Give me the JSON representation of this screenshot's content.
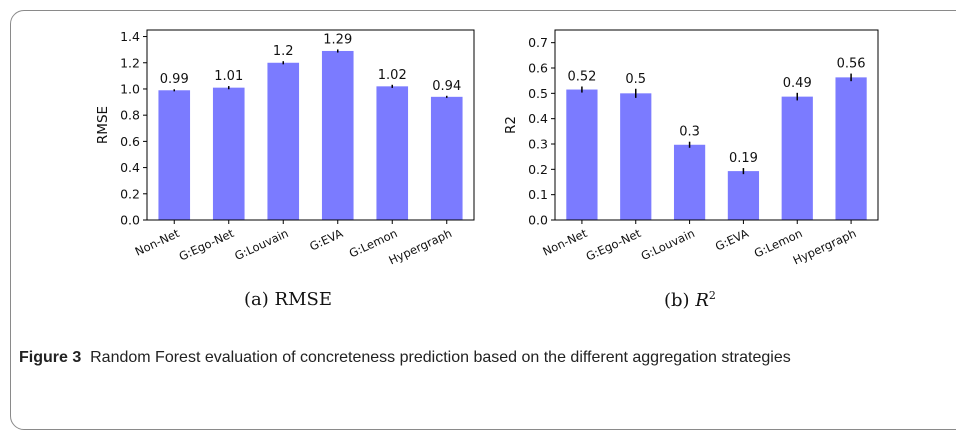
{
  "figure": {
    "label": "Figure 3",
    "caption": "Random Forest evaluation of concreteness prediction based on the different aggregation strategies"
  },
  "chart_data": [
    {
      "type": "bar",
      "subcaption_prefix": "(a)",
      "subcaption_text": "RMSE",
      "ylabel": "RMSE",
      "xlabel": "",
      "categories": [
        "Non-Net",
        "G:Ego-Net",
        "G:Louvain",
        "G:EVA",
        "G:Lemon",
        "Hypergraph"
      ],
      "values": [
        0.99,
        1.01,
        1.2,
        1.29,
        1.02,
        0.94
      ],
      "value_labels": [
        "0.99",
        "1.01",
        "1.2",
        "1.29",
        "1.02",
        "0.94"
      ],
      "errors": [
        0.008,
        0.012,
        0.012,
        0.012,
        0.012,
        0.008
      ],
      "ylim": [
        0,
        1.45
      ],
      "yticks": [
        0.0,
        0.2,
        0.4,
        0.6,
        0.8,
        1.0,
        1.2,
        1.4
      ],
      "ytick_labels": [
        "0.0",
        "0.2",
        "0.4",
        "0.6",
        "0.8",
        "1.0",
        "1.2",
        "1.4"
      ],
      "bar_color": "#7b7bff",
      "grid": false
    },
    {
      "type": "bar",
      "subcaption_prefix": "(b)",
      "subcaption_text": "R",
      "subcaption_sup": "2",
      "ylabel": "R2",
      "xlabel": "",
      "categories": [
        "Non-Net",
        "G:Ego-Net",
        "G:Louvain",
        "G:EVA",
        "G:Lemon",
        "Hypergraph"
      ],
      "values": [
        0.515,
        0.5,
        0.297,
        0.193,
        0.487,
        0.563
      ],
      "value_labels": [
        "0.52",
        "0.5",
        "0.3",
        "0.19",
        "0.49",
        "0.56"
      ],
      "errors": [
        0.012,
        0.018,
        0.012,
        0.012,
        0.015,
        0.015
      ],
      "ylim": [
        0,
        0.75
      ],
      "yticks": [
        0.0,
        0.1,
        0.2,
        0.3,
        0.4,
        0.5,
        0.6,
        0.7
      ],
      "ytick_labels": [
        "0.0",
        "0.1",
        "0.2",
        "0.3",
        "0.4",
        "0.5",
        "0.6",
        "0.7"
      ],
      "bar_color": "#7b7bff",
      "grid": false
    }
  ]
}
